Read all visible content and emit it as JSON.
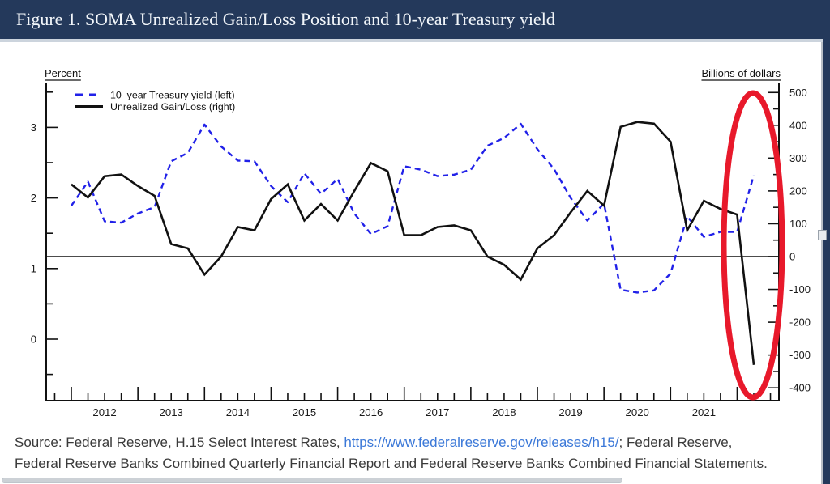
{
  "header": {
    "title": "Figure 1. SOMA Unrealized Gain/Loss Position and 10-year Treasury yield",
    "bar_color": "#24395b",
    "text_color": "#f2f6fa"
  },
  "legend": [
    {
      "label": "10–year Treasury yield (left)",
      "style": "dashed",
      "color": "#2121e8"
    },
    {
      "label": "Unrealized Gain/Loss (right)",
      "style": "solid",
      "color": "#111111"
    }
  ],
  "axes": {
    "left_title": "Percent",
    "right_title": "Billions of dollars",
    "left_tick_labels": [
      "0",
      "1",
      "2",
      "3"
    ],
    "right_tick_labels": [
      "-400",
      "-300",
      "-200",
      "-100",
      "0",
      "100",
      "200",
      "300",
      "400",
      "500"
    ],
    "year_labels": [
      "2012",
      "2013",
      "2014",
      "2015",
      "2016",
      "2017",
      "2018",
      "2019",
      "2020",
      "2021"
    ]
  },
  "chart_data": {
    "type": "line",
    "title": "Figure 1. SOMA Unrealized Gain/Loss Position and 10-year Treasury yield",
    "x_label": "",
    "x_years_shown": [
      2012,
      2013,
      2014,
      2015,
      2016,
      2017,
      2018,
      2019,
      2020,
      2021
    ],
    "x_quarterly": [
      "2011 Q4",
      "2012 Q1",
      "2012 Q2",
      "2012 Q3",
      "2012 Q4",
      "2013 Q1",
      "2013 Q2",
      "2013 Q3",
      "2013 Q4",
      "2014 Q1",
      "2014 Q2",
      "2014 Q3",
      "2014 Q4",
      "2015 Q1",
      "2015 Q2",
      "2015 Q3",
      "2015 Q4",
      "2016 Q1",
      "2016 Q2",
      "2016 Q3",
      "2016 Q4",
      "2017 Q1",
      "2017 Q2",
      "2017 Q3",
      "2017 Q4",
      "2018 Q1",
      "2018 Q2",
      "2018 Q3",
      "2018 Q4",
      "2019 Q1",
      "2019 Q2",
      "2019 Q3",
      "2019 Q4",
      "2020 Q1",
      "2020 Q2",
      "2020 Q3",
      "2020 Q4",
      "2021 Q1",
      "2021 Q2",
      "2021 Q3",
      "2021 Q4",
      "2022 Q1"
    ],
    "series": [
      {
        "name": "10-year Treasury yield (left)",
        "axis": "left",
        "unit": "percent",
        "color": "#2121e8",
        "line": "dashed",
        "values": [
          1.89,
          2.23,
          1.67,
          1.65,
          1.78,
          1.87,
          2.52,
          2.64,
          3.04,
          2.73,
          2.53,
          2.52,
          2.17,
          1.94,
          2.35,
          2.06,
          2.27,
          1.78,
          1.49,
          1.6,
          2.45,
          2.4,
          2.31,
          2.33,
          2.4,
          2.74,
          2.85,
          3.05,
          2.69,
          2.41,
          2.0,
          1.68,
          1.92,
          0.7,
          0.66,
          0.69,
          0.93,
          1.74,
          1.45,
          1.52,
          1.52,
          2.32
        ]
      },
      {
        "name": "Unrealized Gain/Loss (right)",
        "axis": "right",
        "unit": "billions of dollars",
        "color": "#111111",
        "line": "solid",
        "values": [
          220,
          180,
          245,
          250,
          215,
          185,
          38,
          25,
          -55,
          0,
          90,
          80,
          175,
          220,
          110,
          160,
          110,
          200,
          285,
          260,
          65,
          65,
          90,
          95,
          80,
          0,
          -25,
          -70,
          25,
          65,
          135,
          200,
          155,
          395,
          410,
          405,
          350,
          80,
          170,
          145,
          128,
          -330
        ]
      }
    ],
    "left_axis": {
      "label": "Percent",
      "ticks": [
        0,
        1,
        2,
        3
      ],
      "minor_tick_step": 0.5,
      "range": [
        -0.87,
        3.62
      ]
    },
    "right_axis": {
      "label": "Billions of dollars",
      "ticks": [
        -400,
        -300,
        -200,
        -100,
        0,
        100,
        200,
        300,
        400,
        500
      ],
      "minor_tick_step": 50,
      "range": [
        -435,
        528
      ]
    },
    "zero_reference_line": "right axis 0 drawn across full plot width",
    "grid": "off",
    "legend_position": "top-left inside plot",
    "annotation_note": "red ellipse highlights late-2021 to 2022Q1: unrealized position plunges to about -330 billion dollars while the 10-year yield rises to about 2.3 percent"
  },
  "annotation": {
    "shape": "ellipse",
    "color": "#e8192b",
    "meaning": "highlight of latest quarters plunge"
  },
  "source": {
    "prefix": "Source: Federal Reserve, H.15 Select Interest Rates, ",
    "link_text": "https://www.federalreserve.gov/releases/h15/",
    "suffix": "; Federal Reserve,",
    "line2": "Federal Reserve Banks Combined Quarterly Financial Report and Federal Reserve Banks Combined Financial Statements.",
    "link_color": "#3b78d8"
  },
  "colors": {
    "header_navy": "#24395b",
    "yield_blue": "#2121e8",
    "gainloss_black": "#111111",
    "annotation_red": "#e8192b",
    "axis_black": "#111111",
    "source_text": "#3a3a3a"
  }
}
